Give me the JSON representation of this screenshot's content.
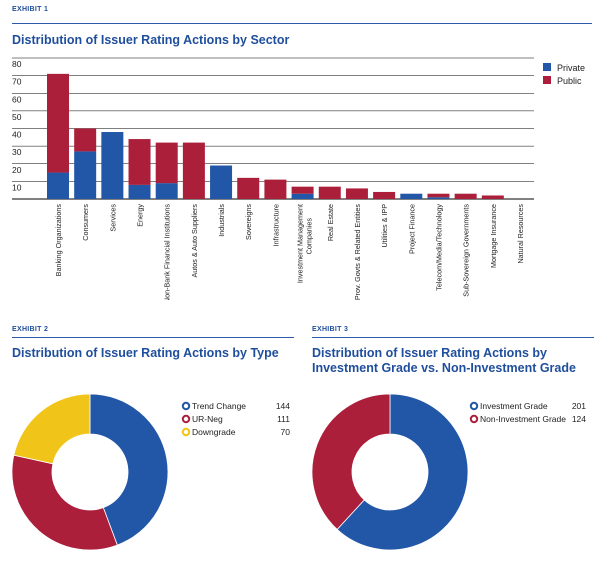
{
  "colors": {
    "private": "#2157a6",
    "public": "#ab1f3a",
    "trend_change": "#2157a6",
    "ur_neg": "#ab1f3a",
    "downgrade": "#f0c419",
    "title": "#1f4e9c",
    "grid": "#000000"
  },
  "exhibit1": {
    "label": "EXHIBIT 1",
    "title": "Distribution of Issuer Rating Actions by Sector",
    "chart_data": {
      "type": "bar",
      "stacked": true,
      "title": "Distribution of Issuer Rating Actions by Sector",
      "categories": [
        "Banking Organizations",
        "Consumers",
        "Services",
        "Energy",
        "Non-Bank Financial Institutions",
        "Autos & Auto Suppliers",
        "Industrials",
        "Sovereigns",
        "Infrastructure",
        "Investment Management Companies",
        "Real Estate",
        "Prov. Govts & Related Entities",
        "Utilities & IPP",
        "Project Finance",
        "Telecom/Media/Technology",
        "Sub-Sovereign Governments",
        "Mortgage Insurance",
        "Natural Resources"
      ],
      "series": [
        {
          "name": "Private",
          "color": "#2157a6",
          "values": [
            15,
            27,
            38,
            8,
            9,
            0,
            19,
            0,
            0,
            3,
            0,
            0,
            0,
            3,
            1,
            0,
            0,
            0
          ]
        },
        {
          "name": "Public",
          "color": "#ab1f3a",
          "values": [
            56,
            13,
            0,
            26,
            23,
            32,
            0,
            12,
            11,
            4,
            7,
            6,
            4,
            0,
            2,
            3,
            2,
            0
          ]
        }
      ],
      "yticks": [
        10,
        20,
        30,
        40,
        50,
        60,
        70,
        80
      ],
      "ylim": [
        0,
        80
      ],
      "legend": [
        "Private",
        "Public"
      ],
      "legend_position": "top-right"
    }
  },
  "exhibit2": {
    "label": "EXHIBIT 2",
    "title": "Distribution of Issuer Rating Actions by Type",
    "chart_data": {
      "type": "pie",
      "donut": true,
      "title": "Distribution of Issuer Rating Actions by Type",
      "slices": [
        {
          "label": "Trend Change",
          "value": 144,
          "color": "#2157a6"
        },
        {
          "label": "UR-Neg",
          "value": 111,
          "color": "#ab1f3a"
        },
        {
          "label": "Downgrade",
          "value": 70,
          "color": "#f0c419"
        }
      ]
    }
  },
  "exhibit3": {
    "label": "EXHIBIT 3",
    "title": "Distribution of Issuer Rating Actions by Investment Grade vs. Non-Investment Grade",
    "chart_data": {
      "type": "pie",
      "donut": true,
      "title": "Distribution of Issuer Rating Actions by Investment Grade vs. Non-Investment Grade",
      "slices": [
        {
          "label": "Investment Grade",
          "value": 201,
          "color": "#2157a6"
        },
        {
          "label": "Non-Investment Grade",
          "value": 124,
          "color": "#ab1f3a"
        }
      ]
    }
  }
}
